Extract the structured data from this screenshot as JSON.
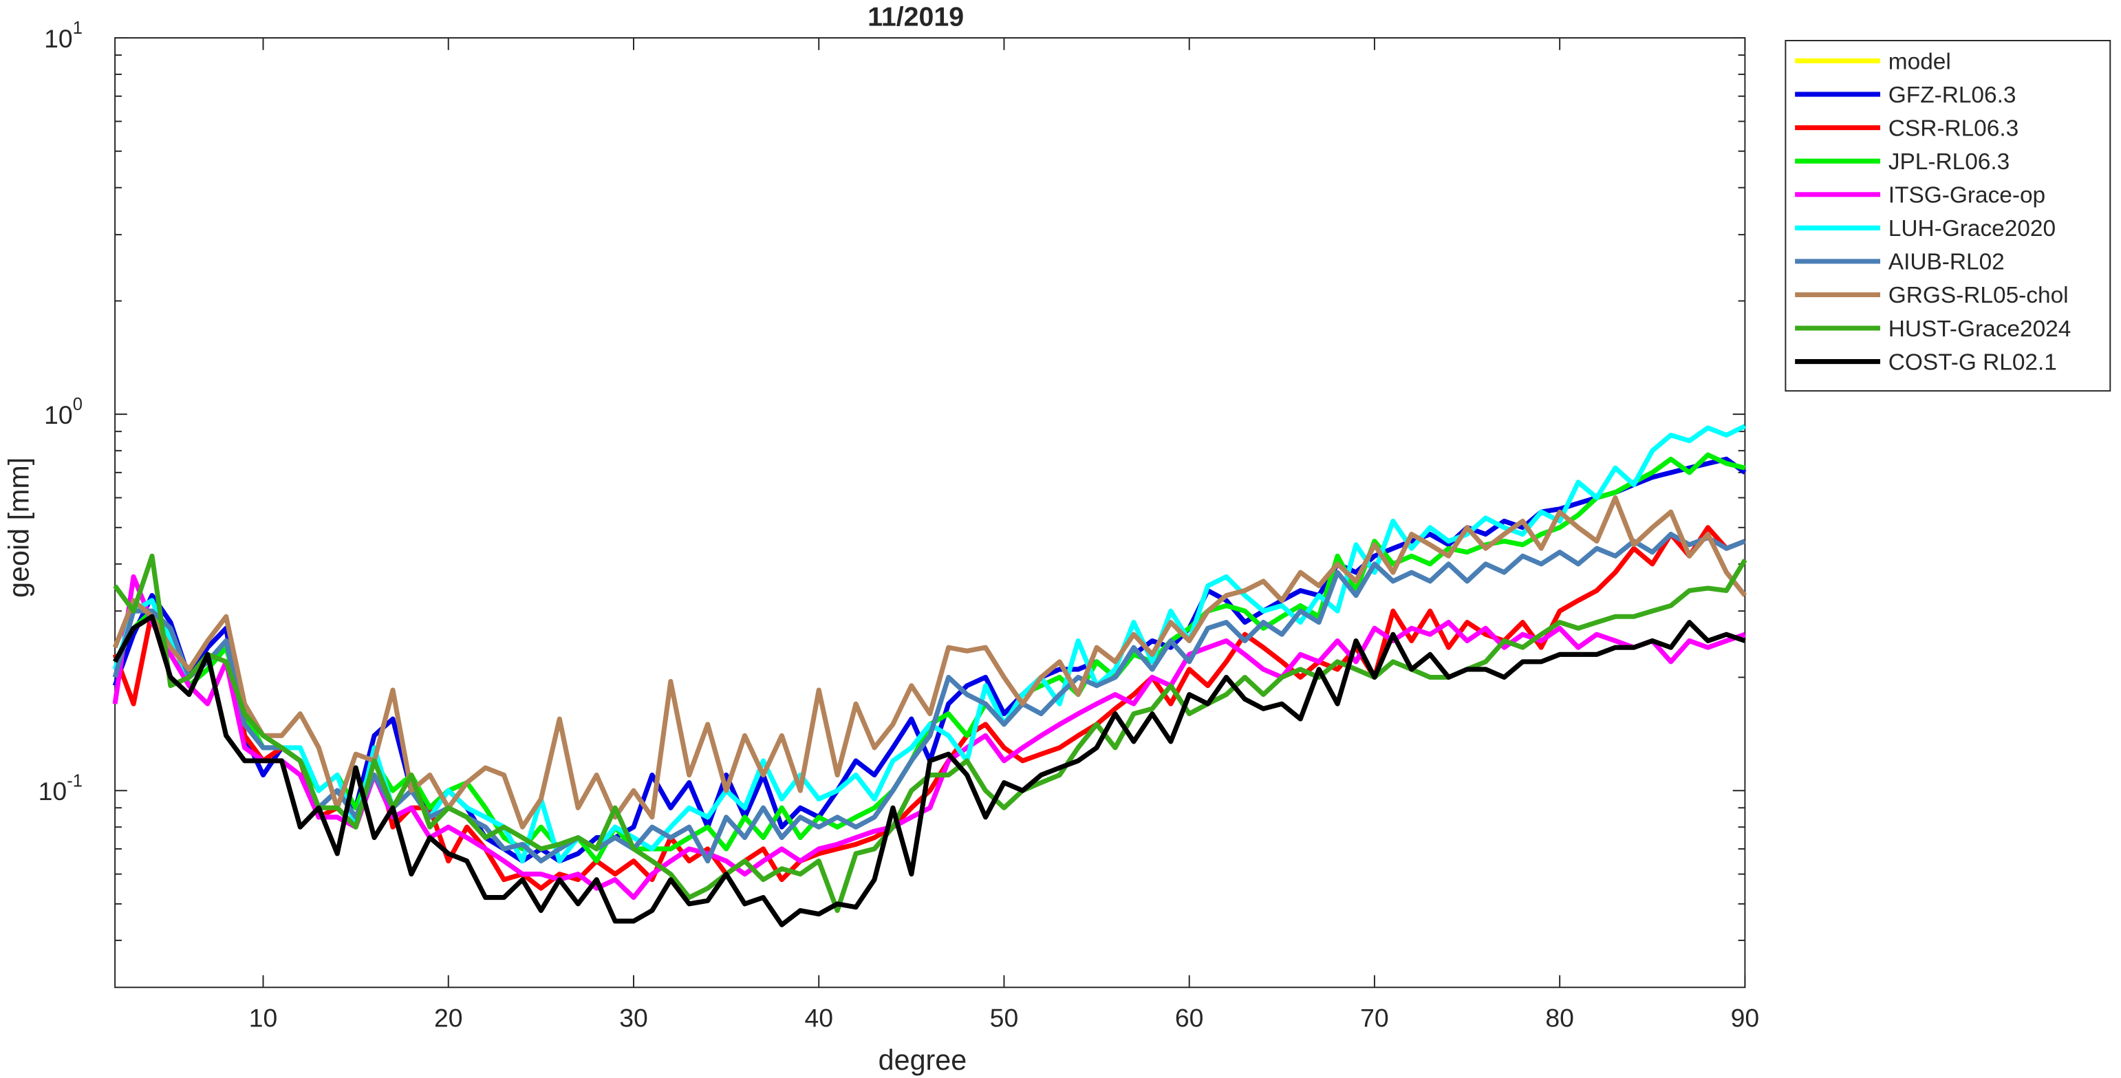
{
  "chart_data": {
    "type": "line",
    "title": "11/2019",
    "xlabel": "degree",
    "ylabel": "geoid [mm]",
    "x": [
      2,
      3,
      4,
      5,
      6,
      7,
      8,
      9,
      10,
      11,
      12,
      13,
      14,
      15,
      16,
      17,
      18,
      19,
      20,
      21,
      22,
      23,
      24,
      25,
      26,
      27,
      28,
      29,
      30,
      31,
      32,
      33,
      34,
      35,
      36,
      37,
      38,
      39,
      40,
      41,
      42,
      43,
      44,
      45,
      46,
      47,
      48,
      49,
      50,
      51,
      52,
      53,
      54,
      55,
      56,
      57,
      58,
      59,
      60,
      61,
      62,
      63,
      64,
      65,
      66,
      67,
      68,
      69,
      70,
      71,
      72,
      73,
      74,
      75,
      76,
      77,
      78,
      79,
      80,
      81,
      82,
      83,
      84,
      85,
      86,
      87,
      88,
      89,
      90
    ],
    "xlim": [
      2,
      90
    ],
    "xticks": [
      10,
      20,
      30,
      40,
      50,
      60,
      70,
      80,
      90
    ],
    "ylim": [
      0.03,
      10
    ],
    "ylog": true,
    "grid": false,
    "legend": "northeastoutside",
    "yticks": [
      {
        "value": 0.1,
        "label": "10",
        "exponent": "-1"
      },
      {
        "value": 1,
        "label": "10",
        "exponent": "0"
      },
      {
        "value": 10,
        "label": "10",
        "exponent": "1"
      }
    ],
    "yminorticks": [
      0.04,
      0.05,
      0.06,
      0.07,
      0.08,
      0.09,
      0.2,
      0.3,
      0.4,
      0.5,
      0.6,
      0.7,
      0.8,
      0.9,
      2,
      3,
      4,
      5,
      6,
      7,
      8,
      9
    ],
    "series": [
      {
        "name": "model",
        "color": "#ffff00",
        "values": [
          null,
          null,
          null,
          null,
          null,
          null,
          null,
          null,
          null,
          null,
          null,
          null,
          null,
          null,
          null,
          null,
          null,
          null,
          null,
          null,
          null,
          null,
          null,
          null,
          null,
          null,
          null,
          null,
          null,
          null,
          null,
          null,
          null,
          null,
          null,
          null,
          null,
          null,
          null,
          null,
          null,
          null,
          null,
          null,
          null,
          null,
          null,
          null,
          null,
          null,
          null,
          null,
          null,
          null,
          null,
          null,
          null,
          null,
          null,
          null,
          null,
          null,
          null,
          null,
          null,
          null,
          null,
          null,
          null,
          null,
          null,
          null,
          null,
          null,
          null,
          null,
          null,
          null,
          null,
          null,
          null,
          null,
          null,
          null,
          null,
          null,
          null,
          null,
          null
        ]
      },
      {
        "name": "GFZ-RL06.3",
        "color": "#0000e6",
        "values": [
          0.19,
          0.26,
          0.33,
          0.28,
          0.2,
          0.24,
          0.27,
          0.14,
          0.11,
          0.13,
          0.12,
          0.09,
          0.1,
          0.09,
          0.14,
          0.155,
          0.1,
          0.09,
          0.1,
          0.09,
          0.075,
          0.07,
          0.065,
          0.07,
          0.065,
          0.068,
          0.075,
          0.075,
          0.08,
          0.11,
          0.09,
          0.105,
          0.08,
          0.11,
          0.085,
          0.11,
          0.08,
          0.09,
          0.085,
          0.1,
          0.12,
          0.11,
          0.13,
          0.155,
          0.12,
          0.17,
          0.19,
          0.2,
          0.16,
          0.18,
          0.2,
          0.21,
          0.21,
          0.22,
          0.2,
          0.23,
          0.25,
          0.24,
          0.27,
          0.34,
          0.32,
          0.28,
          0.3,
          0.32,
          0.34,
          0.33,
          0.4,
          0.38,
          0.42,
          0.44,
          0.46,
          0.48,
          0.45,
          0.5,
          0.48,
          0.52,
          0.5,
          0.55,
          0.56,
          0.58,
          0.6,
          0.62,
          0.65,
          0.68,
          0.7,
          0.72,
          0.74,
          0.76,
          0.7
        ]
      },
      {
        "name": "CSR-RL06.3",
        "color": "#ff0000",
        "values": [
          0.23,
          0.17,
          0.3,
          0.25,
          0.2,
          0.22,
          0.25,
          0.14,
          0.12,
          0.13,
          0.12,
          0.085,
          0.09,
          0.08,
          0.13,
          0.08,
          0.09,
          0.09,
          0.065,
          0.08,
          0.07,
          0.058,
          0.06,
          0.055,
          0.06,
          0.058,
          0.065,
          0.06,
          0.065,
          0.058,
          0.075,
          0.065,
          0.07,
          0.06,
          0.065,
          0.07,
          0.058,
          0.065,
          0.068,
          0.07,
          0.072,
          0.075,
          0.08,
          0.09,
          0.1,
          0.12,
          0.14,
          0.15,
          0.13,
          0.12,
          0.125,
          0.13,
          0.14,
          0.15,
          0.165,
          0.18,
          0.2,
          0.17,
          0.21,
          0.19,
          0.22,
          0.26,
          0.24,
          0.22,
          0.2,
          0.22,
          0.21,
          0.24,
          0.2,
          0.3,
          0.25,
          0.3,
          0.24,
          0.28,
          0.26,
          0.25,
          0.28,
          0.24,
          0.3,
          0.32,
          0.34,
          0.38,
          0.44,
          0.4,
          0.48,
          0.42,
          0.5,
          0.44,
          0.46
        ]
      },
      {
        "name": "JPL-RL06.3",
        "color": "#00ee00",
        "values": [
          0.22,
          0.27,
          0.3,
          0.26,
          0.19,
          0.21,
          0.24,
          0.16,
          0.13,
          0.13,
          0.12,
          0.1,
          0.11,
          0.09,
          0.12,
          0.1,
          0.11,
          0.09,
          0.1,
          0.105,
          0.09,
          0.075,
          0.07,
          0.08,
          0.07,
          0.075,
          0.065,
          0.08,
          0.07,
          0.07,
          0.07,
          0.075,
          0.08,
          0.07,
          0.085,
          0.075,
          0.09,
          0.075,
          0.085,
          0.08,
          0.085,
          0.09,
          0.1,
          0.12,
          0.15,
          0.16,
          0.14,
          0.17,
          0.15,
          0.18,
          0.19,
          0.2,
          0.18,
          0.22,
          0.2,
          0.23,
          0.22,
          0.25,
          0.27,
          0.3,
          0.31,
          0.3,
          0.27,
          0.29,
          0.31,
          0.29,
          0.42,
          0.34,
          0.46,
          0.4,
          0.42,
          0.4,
          0.44,
          0.43,
          0.45,
          0.46,
          0.45,
          0.48,
          0.5,
          0.54,
          0.6,
          0.62,
          0.66,
          0.7,
          0.76,
          0.7,
          0.78,
          0.74,
          0.72
        ]
      },
      {
        "name": "ITSG-Grace-op",
        "color": "#ff00ff",
        "values": [
          0.17,
          0.37,
          0.28,
          0.23,
          0.19,
          0.17,
          0.22,
          0.13,
          0.12,
          0.12,
          0.11,
          0.085,
          0.085,
          0.08,
          0.11,
          0.085,
          0.09,
          0.075,
          0.08,
          0.075,
          0.07,
          0.065,
          0.06,
          0.06,
          0.058,
          0.06,
          0.055,
          0.058,
          0.052,
          0.06,
          0.065,
          0.07,
          0.068,
          0.065,
          0.06,
          0.065,
          0.07,
          0.065,
          0.07,
          0.072,
          0.075,
          0.078,
          0.08,
          0.085,
          0.09,
          0.12,
          0.13,
          0.14,
          0.12,
          0.13,
          0.14,
          0.15,
          0.16,
          0.17,
          0.18,
          0.17,
          0.2,
          0.19,
          0.23,
          0.24,
          0.25,
          0.23,
          0.21,
          0.2,
          0.23,
          0.22,
          0.25,
          0.22,
          0.27,
          0.25,
          0.27,
          0.26,
          0.28,
          0.25,
          0.27,
          0.24,
          0.26,
          0.25,
          0.27,
          0.24,
          0.26,
          0.25,
          0.24,
          0.25,
          0.22,
          0.25,
          0.24,
          0.25,
          0.26
        ]
      },
      {
        "name": "LUH-Grace2020",
        "color": "#00ffff",
        "values": [
          0.21,
          0.3,
          0.32,
          0.25,
          0.2,
          0.22,
          0.25,
          0.15,
          0.13,
          0.13,
          0.13,
          0.1,
          0.11,
          0.08,
          0.13,
          0.09,
          0.1,
          0.085,
          0.1,
          0.09,
          0.085,
          0.08,
          0.065,
          0.095,
          0.065,
          0.075,
          0.07,
          0.08,
          0.075,
          0.07,
          0.08,
          0.09,
          0.085,
          0.1,
          0.09,
          0.12,
          0.095,
          0.11,
          0.095,
          0.1,
          0.11,
          0.095,
          0.12,
          0.13,
          0.15,
          0.14,
          0.12,
          0.19,
          0.15,
          0.18,
          0.2,
          0.17,
          0.25,
          0.19,
          0.21,
          0.28,
          0.22,
          0.3,
          0.25,
          0.35,
          0.37,
          0.33,
          0.3,
          0.31,
          0.28,
          0.33,
          0.3,
          0.45,
          0.38,
          0.52,
          0.44,
          0.5,
          0.46,
          0.48,
          0.53,
          0.5,
          0.48,
          0.55,
          0.52,
          0.66,
          0.6,
          0.72,
          0.65,
          0.8,
          0.88,
          0.85,
          0.92,
          0.88,
          0.93
        ]
      },
      {
        "name": "AIUB-RL02",
        "color": "#4a7fb5",
        "values": [
          0.2,
          0.3,
          0.3,
          0.27,
          0.2,
          0.22,
          0.25,
          0.15,
          0.13,
          0.13,
          0.12,
          0.09,
          0.1,
          0.085,
          0.11,
          0.09,
          0.1,
          0.085,
          0.09,
          0.085,
          0.08,
          0.07,
          0.072,
          0.065,
          0.07,
          0.075,
          0.07,
          0.075,
          0.07,
          0.08,
          0.075,
          0.08,
          0.065,
          0.085,
          0.075,
          0.09,
          0.075,
          0.085,
          0.08,
          0.085,
          0.08,
          0.085,
          0.1,
          0.12,
          0.14,
          0.2,
          0.18,
          0.17,
          0.15,
          0.17,
          0.16,
          0.18,
          0.2,
          0.19,
          0.2,
          0.24,
          0.21,
          0.25,
          0.22,
          0.27,
          0.28,
          0.25,
          0.28,
          0.26,
          0.3,
          0.28,
          0.38,
          0.33,
          0.4,
          0.36,
          0.38,
          0.36,
          0.4,
          0.36,
          0.4,
          0.38,
          0.42,
          0.4,
          0.43,
          0.4,
          0.44,
          0.42,
          0.46,
          0.43,
          0.48,
          0.45,
          0.47,
          0.44,
          0.46
        ]
      },
      {
        "name": "GRGS-RL05-chol",
        "color": "#b5835a",
        "values": [
          0.24,
          0.32,
          0.29,
          0.24,
          0.21,
          0.25,
          0.29,
          0.17,
          0.14,
          0.14,
          0.16,
          0.13,
          0.09,
          0.125,
          0.12,
          0.185,
          0.1,
          0.11,
          0.09,
          0.105,
          0.115,
          0.11,
          0.08,
          0.095,
          0.155,
          0.09,
          0.11,
          0.085,
          0.1,
          0.085,
          0.195,
          0.11,
          0.15,
          0.1,
          0.14,
          0.11,
          0.14,
          0.1,
          0.185,
          0.11,
          0.17,
          0.13,
          0.15,
          0.19,
          0.16,
          0.24,
          0.235,
          0.24,
          0.2,
          0.17,
          0.2,
          0.22,
          0.18,
          0.24,
          0.22,
          0.26,
          0.23,
          0.28,
          0.25,
          0.3,
          0.33,
          0.34,
          0.36,
          0.32,
          0.38,
          0.35,
          0.4,
          0.36,
          0.45,
          0.38,
          0.48,
          0.45,
          0.42,
          0.5,
          0.44,
          0.48,
          0.52,
          0.44,
          0.55,
          0.5,
          0.46,
          0.6,
          0.45,
          0.5,
          0.55,
          0.42,
          0.48,
          0.38,
          0.33
        ]
      },
      {
        "name": "HUST-Grace2024",
        "color": "#3aaa1a",
        "values": [
          0.35,
          0.3,
          0.42,
          0.19,
          0.2,
          0.23,
          0.22,
          0.16,
          0.14,
          0.13,
          0.12,
          0.09,
          0.09,
          0.08,
          0.12,
          0.09,
          0.11,
          0.08,
          0.09,
          0.085,
          0.075,
          0.08,
          0.075,
          0.07,
          0.072,
          0.075,
          0.07,
          0.09,
          0.07,
          0.065,
          0.06,
          0.052,
          0.055,
          0.06,
          0.065,
          0.058,
          0.062,
          0.06,
          0.065,
          0.048,
          0.068,
          0.07,
          0.08,
          0.1,
          0.11,
          0.11,
          0.12,
          0.1,
          0.09,
          0.1,
          0.105,
          0.11,
          0.13,
          0.15,
          0.13,
          0.16,
          0.165,
          0.19,
          0.16,
          0.17,
          0.18,
          0.2,
          0.18,
          0.2,
          0.21,
          0.2,
          0.22,
          0.21,
          0.2,
          0.22,
          0.21,
          0.2,
          0.2,
          0.21,
          0.22,
          0.25,
          0.24,
          0.26,
          0.28,
          0.27,
          0.28,
          0.29,
          0.29,
          0.3,
          0.31,
          0.34,
          0.345,
          0.34,
          0.41
        ]
      },
      {
        "name": "COST-G RL02.1",
        "color": "#000000",
        "values": [
          0.22,
          0.27,
          0.29,
          0.2,
          0.18,
          0.23,
          0.14,
          0.12,
          0.12,
          0.12,
          0.08,
          0.09,
          0.068,
          0.115,
          0.075,
          0.09,
          0.06,
          0.075,
          0.068,
          0.065,
          0.052,
          0.052,
          0.058,
          0.048,
          0.058,
          0.05,
          0.058,
          0.045,
          0.045,
          0.048,
          0.058,
          0.05,
          0.051,
          0.06,
          0.05,
          0.052,
          0.044,
          0.048,
          0.047,
          0.05,
          0.049,
          0.058,
          0.09,
          0.06,
          0.12,
          0.125,
          0.11,
          0.085,
          0.105,
          0.1,
          0.11,
          0.115,
          0.12,
          0.13,
          0.16,
          0.135,
          0.16,
          0.135,
          0.18,
          0.17,
          0.2,
          0.175,
          0.165,
          0.17,
          0.155,
          0.21,
          0.17,
          0.25,
          0.2,
          0.26,
          0.21,
          0.23,
          0.2,
          0.21,
          0.21,
          0.2,
          0.22,
          0.22,
          0.23,
          0.23,
          0.23,
          0.24,
          0.24,
          0.25,
          0.24,
          0.28,
          0.25,
          0.26,
          0.25
        ]
      }
    ]
  }
}
